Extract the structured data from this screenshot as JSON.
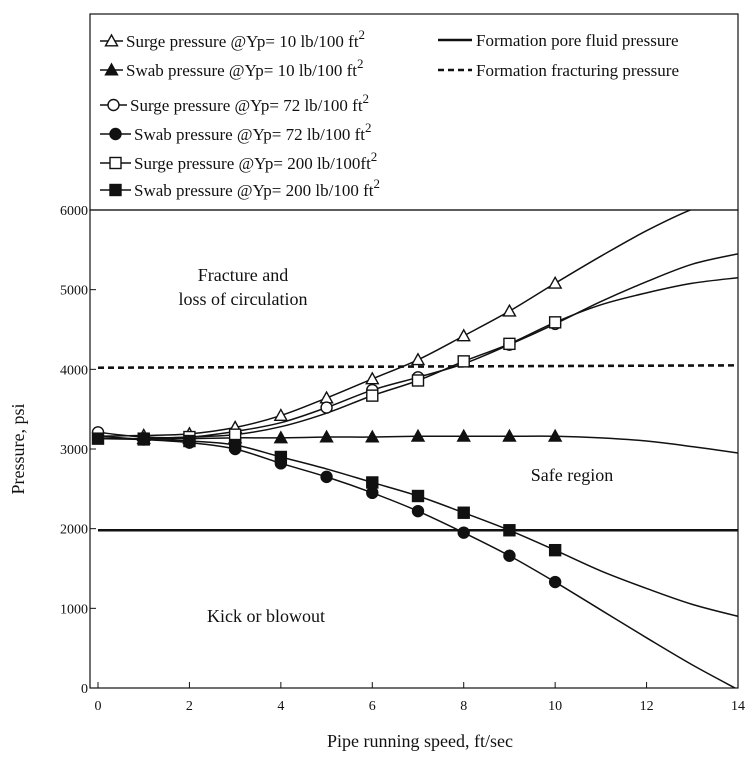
{
  "chart_data": {
    "type": "line",
    "xlabel": "Pipe running speed,  ft/sec",
    "ylabel": "Pressure,  psi",
    "xlim": [
      0,
      14
    ],
    "ylim": [
      0,
      6000
    ],
    "xticks": [
      "0",
      "2",
      "4",
      "6",
      "8",
      "10",
      "12",
      "14"
    ],
    "yticks": [
      "0",
      "1000",
      "2000",
      "3000",
      "4000",
      "5000",
      "6000"
    ],
    "grid": false,
    "legend_position": "top",
    "legend": {
      "surge_10": "Surge pressure @Yp= 10 lb/100 ft",
      "swab_10": "Swab pressure @Yp= 10 lb/100 ft",
      "surge_72": "Surge pressure @Yp= 72 lb/100 ft",
      "swab_72": "Swab pressure @Yp= 72 lb/100 ft",
      "surge_200": "Surge pressure @Yp= 200 lb/100ft",
      "swab_200": "Swab pressure @Yp= 200 lb/100 ft",
      "pore": "Formation pore fluid pressure",
      "frac": "Formation fracturing pressure",
      "superscript": "2"
    },
    "region_labels": {
      "fracture_line1": "Fracture and",
      "fracture_line2": "loss of circulation",
      "safe": "Safe region",
      "kick": "Kick or blowout"
    },
    "series": [
      {
        "key": "surge_10",
        "marker": "open-triangle",
        "x": [
          0,
          1,
          2,
          3,
          4,
          5,
          6,
          7,
          8,
          9,
          10,
          11,
          12,
          13,
          14
        ],
        "y": [
          3160,
          3170,
          3190,
          3270,
          3420,
          3640,
          3880,
          4120,
          4420,
          4730,
          5080,
          5420,
          5740,
          6010,
          6200
        ],
        "marker_x": [
          1,
          2,
          3,
          4,
          5,
          6,
          7,
          8,
          9,
          10
        ]
      },
      {
        "key": "swab_10",
        "marker": "filled-triangle",
        "x": [
          0,
          1,
          2,
          3,
          4,
          5,
          6,
          7,
          8,
          9,
          10,
          11,
          12,
          13,
          14
        ],
        "y": [
          3130,
          3130,
          3130,
          3140,
          3140,
          3150,
          3150,
          3160,
          3160,
          3160,
          3160,
          3140,
          3100,
          3030,
          2950
        ],
        "marker_x": [
          1,
          2,
          3,
          4,
          5,
          6,
          7,
          8,
          9,
          10
        ]
      },
      {
        "key": "surge_72",
        "marker": "open-circle",
        "x": [
          0,
          1,
          2,
          3,
          4,
          5,
          6,
          7,
          8,
          9,
          10,
          11,
          12,
          13,
          14
        ],
        "y": [
          3210,
          3150,
          3150,
          3220,
          3330,
          3520,
          3740,
          3900,
          4070,
          4310,
          4570,
          4850,
          5100,
          5320,
          5450
        ],
        "marker_x": [
          0,
          5,
          6,
          7,
          9,
          10
        ]
      },
      {
        "key": "swab_72",
        "marker": "filled-circle",
        "x": [
          0,
          1,
          2,
          3,
          4,
          5,
          6,
          7,
          8,
          9,
          10,
          11,
          12,
          13,
          14
        ],
        "y": [
          3160,
          3120,
          3080,
          3000,
          2820,
          2650,
          2450,
          2220,
          1950,
          1660,
          1330,
          980,
          630,
          290,
          -20
        ],
        "marker_x": [
          1,
          2,
          3,
          4,
          5,
          6,
          7,
          8,
          9,
          10
        ]
      },
      {
        "key": "surge_200",
        "marker": "open-square",
        "x": [
          0,
          1,
          2,
          3,
          4,
          5,
          6,
          7,
          8,
          9,
          10,
          11,
          12,
          13,
          14
        ],
        "y": [
          3130,
          3130,
          3150,
          3180,
          3280,
          3450,
          3670,
          3860,
          4100,
          4320,
          4590,
          4810,
          4960,
          5080,
          5150
        ],
        "marker_x": [
          1,
          2,
          3,
          6,
          7,
          8,
          9,
          10
        ]
      },
      {
        "key": "swab_200",
        "marker": "filled-square",
        "x": [
          0,
          1,
          2,
          3,
          4,
          5,
          6,
          7,
          8,
          9,
          10,
          11,
          12,
          13,
          14
        ],
        "y": [
          3130,
          3120,
          3100,
          3050,
          2900,
          2750,
          2580,
          2410,
          2200,
          1980,
          1730,
          1470,
          1250,
          1050,
          900
        ],
        "marker_x": [
          0,
          1,
          2,
          3,
          4,
          6,
          7,
          8,
          9,
          10
        ]
      },
      {
        "key": "pore",
        "marker": "none",
        "x": [
          0,
          14
        ],
        "y": [
          1980,
          1980
        ],
        "marker_x": []
      },
      {
        "key": "frac",
        "marker": "none",
        "x": [
          0,
          14
        ],
        "y": [
          4020,
          4050
        ],
        "marker_x": []
      }
    ]
  }
}
